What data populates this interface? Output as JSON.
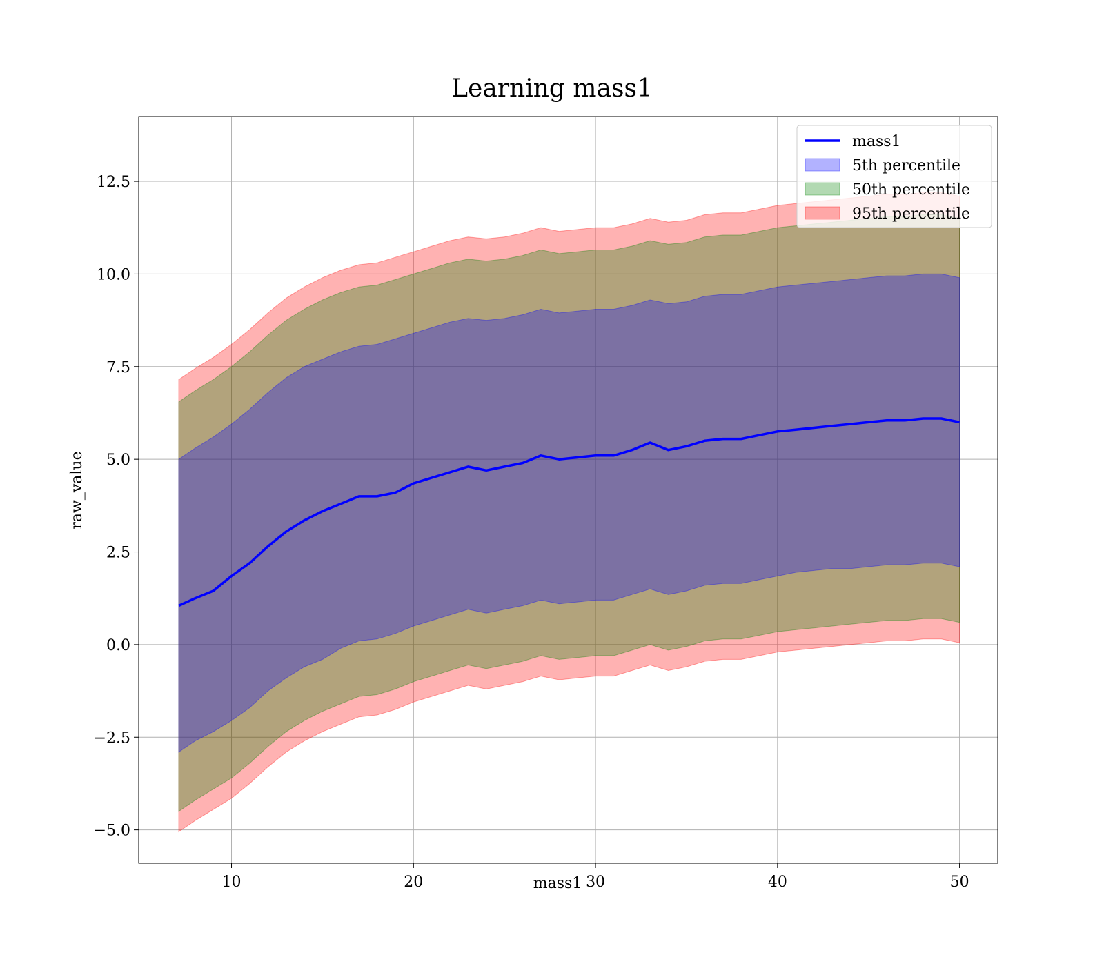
{
  "chart_data": {
    "type": "area",
    "title": "Learning mass1",
    "xlabel": "mass1",
    "ylabel": "raw_value",
    "xlim": [
      4.9,
      52.1
    ],
    "ylim": [
      -5.9,
      14.25
    ],
    "xticks": [
      10,
      20,
      30,
      40,
      50
    ],
    "xtick_labels": [
      "10",
      "20",
      "30",
      "40",
      "50"
    ],
    "yticks": [
      -5.0,
      -2.5,
      0.0,
      2.5,
      5.0,
      7.5,
      10.0,
      12.5
    ],
    "ytick_labels": [
      "−5.0",
      "−2.5",
      "0.0",
      "2.5",
      "5.0",
      "7.5",
      "10.0",
      "12.5"
    ],
    "grid": true,
    "legend_position": "top-right",
    "x": [
      7.1,
      8,
      9,
      10,
      11,
      12,
      13,
      14,
      15,
      16,
      17,
      18,
      19,
      20,
      21,
      22,
      23,
      24,
      25,
      26,
      27,
      28,
      29,
      30,
      31,
      32,
      33,
      34,
      35,
      36,
      37,
      38,
      39,
      40,
      41,
      42,
      43,
      44,
      45,
      46,
      47,
      48,
      49,
      50
    ],
    "series": [
      {
        "name": "mass1",
        "kind": "line",
        "color": "#0000ff",
        "values": [
          1.05,
          1.25,
          1.45,
          1.85,
          2.2,
          2.65,
          3.05,
          3.35,
          3.6,
          3.8,
          4.0,
          4.0,
          4.1,
          4.35,
          4.5,
          4.65,
          4.8,
          4.7,
          4.8,
          4.9,
          5.1,
          5.0,
          5.05,
          5.1,
          5.1,
          5.25,
          5.45,
          5.25,
          5.35,
          5.5,
          5.55,
          5.55,
          5.65,
          5.75,
          5.8,
          5.85,
          5.9,
          5.95,
          6.0,
          6.05,
          6.05,
          6.1,
          6.1,
          6.0
        ]
      },
      {
        "name": "5th percentile",
        "kind": "band",
        "color": "#0000ff",
        "lower": [
          -2.9,
          -2.6,
          -2.35,
          -2.05,
          -1.7,
          -1.25,
          -0.9,
          -0.6,
          -0.4,
          -0.1,
          0.1,
          0.15,
          0.3,
          0.5,
          0.65,
          0.8,
          0.95,
          0.85,
          0.95,
          1.05,
          1.2,
          1.1,
          1.15,
          1.2,
          1.2,
          1.35,
          1.5,
          1.35,
          1.45,
          1.6,
          1.65,
          1.65,
          1.75,
          1.85,
          1.95,
          2.0,
          2.05,
          2.05,
          2.1,
          2.15,
          2.15,
          2.2,
          2.2,
          2.1
        ],
        "upper": [
          5.0,
          5.3,
          5.6,
          5.95,
          6.35,
          6.8,
          7.2,
          7.5,
          7.7,
          7.9,
          8.05,
          8.1,
          8.25,
          8.4,
          8.55,
          8.7,
          8.8,
          8.75,
          8.8,
          8.9,
          9.05,
          8.95,
          9.0,
          9.05,
          9.05,
          9.15,
          9.3,
          9.2,
          9.25,
          9.4,
          9.45,
          9.45,
          9.55,
          9.65,
          9.7,
          9.75,
          9.8,
          9.85,
          9.9,
          9.95,
          9.95,
          10.0,
          10.0,
          9.9
        ]
      },
      {
        "name": "50th percentile",
        "kind": "band",
        "color": "#008000",
        "lower": [
          -4.5,
          -4.2,
          -3.9,
          -3.6,
          -3.2,
          -2.75,
          -2.35,
          -2.05,
          -1.8,
          -1.6,
          -1.4,
          -1.35,
          -1.2,
          -1.0,
          -0.85,
          -0.7,
          -0.55,
          -0.65,
          -0.55,
          -0.45,
          -0.3,
          -0.4,
          -0.35,
          -0.3,
          -0.3,
          -0.15,
          0.0,
          -0.15,
          -0.05,
          0.1,
          0.15,
          0.15,
          0.25,
          0.35,
          0.4,
          0.45,
          0.5,
          0.55,
          0.6,
          0.65,
          0.65,
          0.7,
          0.7,
          0.6
        ],
        "upper": [
          6.55,
          6.85,
          7.15,
          7.5,
          7.9,
          8.35,
          8.75,
          9.05,
          9.3,
          9.5,
          9.65,
          9.7,
          9.85,
          10.0,
          10.15,
          10.3,
          10.4,
          10.35,
          10.4,
          10.5,
          10.65,
          10.55,
          10.6,
          10.65,
          10.65,
          10.75,
          10.9,
          10.8,
          10.85,
          11.0,
          11.05,
          11.05,
          11.15,
          11.25,
          11.3,
          11.35,
          11.4,
          11.45,
          11.5,
          11.55,
          11.55,
          11.6,
          11.6,
          11.5
        ]
      },
      {
        "name": "95th percentile",
        "kind": "band",
        "color": "#ff0000",
        "lower": [
          -5.05,
          -4.75,
          -4.45,
          -4.15,
          -3.75,
          -3.3,
          -2.9,
          -2.6,
          -2.35,
          -2.15,
          -1.95,
          -1.9,
          -1.75,
          -1.55,
          -1.4,
          -1.25,
          -1.1,
          -1.2,
          -1.1,
          -1.0,
          -0.85,
          -0.95,
          -0.9,
          -0.85,
          -0.85,
          -0.7,
          -0.55,
          -0.7,
          -0.6,
          -0.45,
          -0.4,
          -0.4,
          -0.3,
          -0.2,
          -0.15,
          -0.1,
          -0.05,
          0.0,
          0.05,
          0.1,
          0.1,
          0.15,
          0.15,
          0.05
        ],
        "upper": [
          7.15,
          7.45,
          7.75,
          8.1,
          8.5,
          8.95,
          9.35,
          9.65,
          9.9,
          10.1,
          10.25,
          10.3,
          10.45,
          10.6,
          10.75,
          10.9,
          11.0,
          10.95,
          11.0,
          11.1,
          11.25,
          11.15,
          11.2,
          11.25,
          11.25,
          11.35,
          11.5,
          11.4,
          11.45,
          11.6,
          11.65,
          11.65,
          11.75,
          11.85,
          11.9,
          11.95,
          12.0,
          12.05,
          12.1,
          12.15,
          12.15,
          12.2,
          12.2,
          12.1
        ]
      }
    ]
  }
}
